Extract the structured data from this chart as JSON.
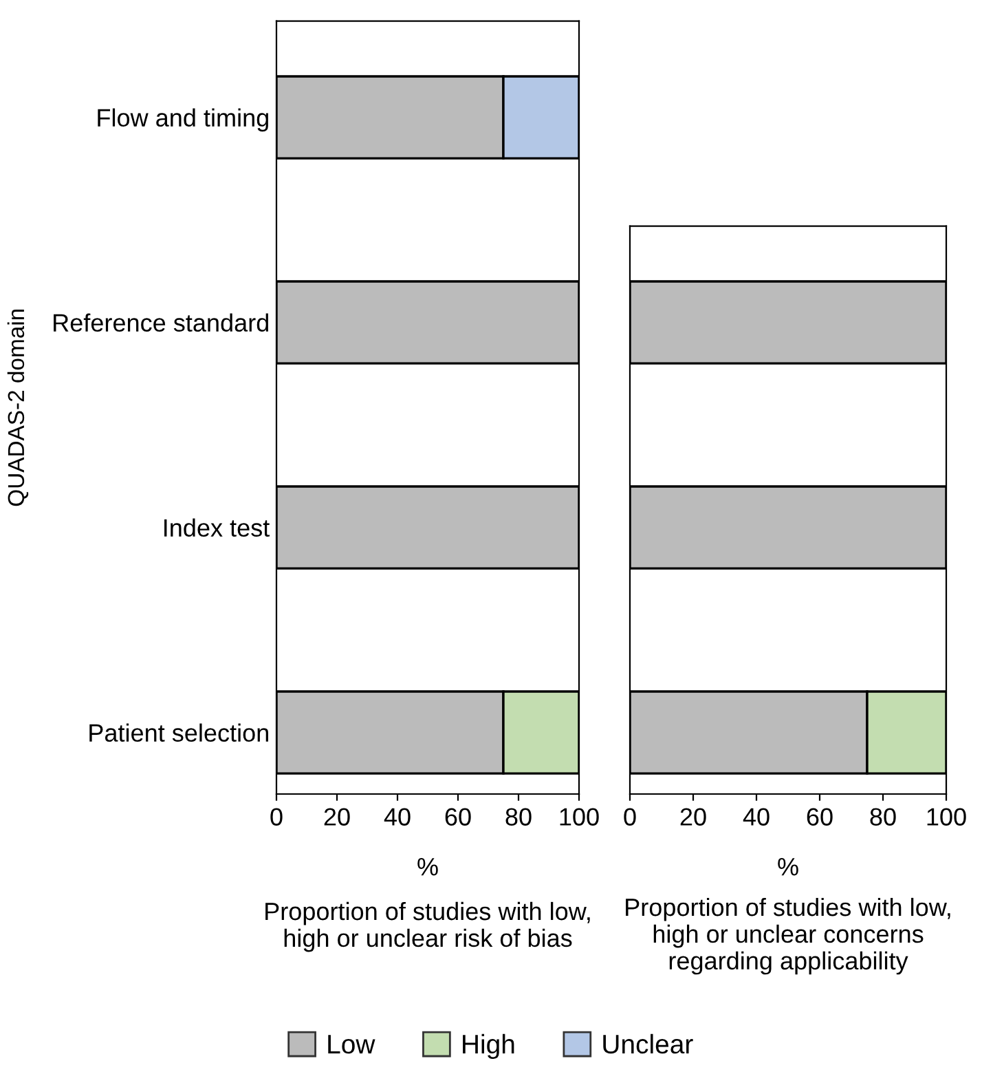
{
  "chart_data": [
    {
      "type": "bar",
      "orientation": "horizontal",
      "stacked": true,
      "categories": [
        "Flow and timing",
        "Reference standard",
        "Index test",
        "Patient selection"
      ],
      "ylabel": "QUADAS-2 domain",
      "xlabel": "%",
      "annotations": [
        "Proportion of studies with low,\nhigh or unclear risk of bias"
      ],
      "xlim": [
        0,
        100
      ],
      "xticks": [
        0,
        20,
        40,
        60,
        80,
        100
      ],
      "legend": "bottom",
      "series": [
        {
          "name": "Low",
          "color": "#bbbbbb",
          "values": [
            75,
            100,
            100,
            75
          ]
        },
        {
          "name": "High",
          "color": "#c3ddb0",
          "values": [
            null,
            null,
            null,
            25
          ]
        },
        {
          "name": "Unclear",
          "color": "#b3c7e6",
          "values": [
            25,
            null,
            null,
            null
          ]
        }
      ]
    },
    {
      "type": "bar",
      "orientation": "horizontal",
      "stacked": true,
      "categories": [
        null,
        null,
        null
      ],
      "tick_labels": "x",
      "xlabel": "%",
      "annotations": [
        "Proportion of studies with low,\nhigh or unclear concerns\nregarding applicability"
      ],
      "xlim": [
        0,
        100
      ],
      "xticks": [
        0,
        20,
        40,
        60,
        80,
        100
      ],
      "series": [
        {
          "color": "#bbbbbb",
          "values": [
            100,
            100,
            75
          ]
        },
        {
          "color": "#c3ddb0",
          "values": [
            null,
            null,
            25
          ]
        }
      ]
    }
  ]
}
